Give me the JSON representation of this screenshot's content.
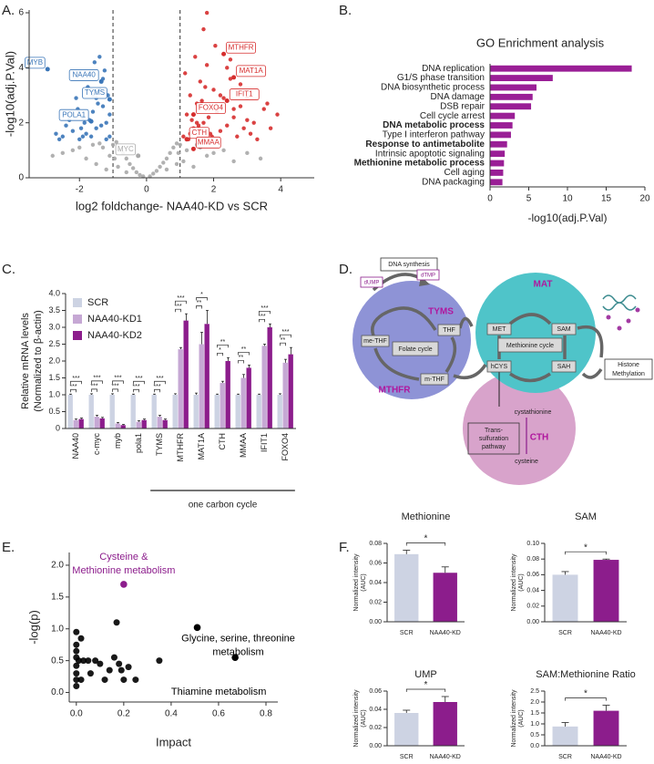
{
  "panel_labels": [
    "A.",
    "B.",
    "C.",
    "D.",
    "E.",
    "F."
  ],
  "chart_data": [
    {
      "type": "scatter",
      "xlabel": "log2 foldchange- NAA40-KD vs SCR",
      "ylabel": "-log10(adj.P.Val)",
      "xlim": [
        -3.5,
        5
      ],
      "ylim": [
        0,
        6.1
      ],
      "xticks": [
        -2,
        0,
        2,
        4
      ],
      "yticks": [
        0,
        2,
        4,
        6
      ],
      "vlines": [
        -1,
        1
      ],
      "series": [
        {
          "color": "#a9a9a9",
          "x": [
            -2.5,
            -2.2,
            -2.0,
            -1.8,
            -1.6,
            -1.5,
            -1.3,
            -1.2,
            -1.1,
            -1.0,
            -0.9,
            -0.8,
            -0.7,
            -0.6,
            -0.5,
            -0.4,
            -0.3,
            -0.2,
            -0.1,
            0.1,
            0.2,
            0.3,
            0.4,
            0.5,
            0.6,
            0.7,
            0.8,
            0.9,
            1.0,
            1.1,
            1.2,
            1.4,
            1.6,
            1.8,
            2.0,
            2.3,
            2.6,
            3.0,
            -0.85,
            -0.6,
            0.6,
            0.9,
            -1.4,
            1.5,
            -0.95,
            0.95,
            -2.8,
            3.4
          ],
          "y": [
            0.9,
            1.0,
            1.1,
            0.7,
            1.2,
            0.5,
            1.1,
            0.3,
            0.8,
            1.2,
            1.3,
            1.0,
            0.9,
            0.7,
            0.5,
            0.35,
            0.2,
            0.1,
            0.05,
            0.05,
            0.15,
            0.25,
            0.4,
            0.55,
            0.7,
            0.9,
            1.1,
            1.25,
            1.2,
            0.6,
            1.0,
            0.4,
            1.1,
            0.8,
            0.9,
            1.0,
            0.6,
            0.9,
            0.4,
            0.2,
            0.3,
            0.5,
            1.25,
            1.2,
            0.7,
            0.9,
            0.8,
            0.7
          ]
        },
        {
          "color": "#3a76b8",
          "x": [
            -1.1,
            -1.2,
            -1.3,
            -1.4,
            -1.5,
            -1.6,
            -1.7,
            -1.8,
            -1.9,
            -2.0,
            -2.1,
            -2.2,
            -2.3,
            -2.5,
            -2.7,
            -1.15,
            -1.25,
            -1.35,
            -1.45,
            -1.55,
            -1.65,
            -1.75,
            -1.85,
            -1.95,
            -2.05,
            -1.1,
            -1.2,
            -1.3,
            -1.5,
            -1.7,
            -1.9,
            -2.4,
            -2.6,
            -1.4,
            -1.6
          ],
          "y": [
            1.5,
            2.0,
            2.6,
            3.2,
            1.8,
            2.4,
            3.8,
            1.6,
            2.2,
            1.4,
            2.9,
            1.7,
            2.1,
            1.5,
            1.6,
            3.0,
            3.9,
            1.9,
            2.7,
            4.2,
            1.5,
            3.3,
            2.0,
            1.8,
            2.5,
            2.3,
            1.4,
            3.6,
            2.9,
            2.1,
            1.5,
            1.9,
            1.4,
            4.4,
            3.0
          ]
        },
        {
          "color": "#d62d2d",
          "x": [
            1.1,
            1.2,
            1.3,
            1.4,
            1.5,
            1.6,
            1.7,
            1.8,
            1.9,
            2.0,
            2.1,
            2.2,
            2.3,
            2.4,
            2.5,
            2.6,
            2.7,
            2.8,
            2.9,
            3.0,
            3.1,
            3.2,
            3.3,
            3.5,
            3.7,
            1.15,
            1.25,
            1.35,
            1.45,
            1.55,
            1.65,
            1.75,
            1.85,
            1.95,
            2.05,
            2.2,
            2.4,
            2.6,
            2.8,
            3.0,
            1.3,
            1.5,
            1.7,
            3.6,
            3.9,
            1.8,
            2.5
          ],
          "y": [
            1.5,
            2.3,
            3.0,
            1.8,
            2.7,
            3.5,
            2.0,
            4.1,
            1.6,
            3.2,
            2.4,
            1.7,
            2.9,
            1.9,
            3.6,
            2.2,
            1.5,
            2.6,
            1.8,
            2.9,
            1.6,
            2.0,
            1.4,
            2.5,
            1.8,
            3.8,
            1.4,
            2.1,
            4.4,
            1.9,
            2.8,
            3.3,
            2.2,
            1.5,
            4.8,
            3.0,
            4.0,
            2.5,
            3.4,
            2.1,
            1.6,
            2.0,
            5.4,
            2.7,
            2.3,
            6.0,
            4.3
          ]
        }
      ],
      "annotations": [
        {
          "text": "MYB",
          "x": -2.95,
          "y": 3.95,
          "color": "#3a76b8"
        },
        {
          "text": "NAA40",
          "x": -1.35,
          "y": 3.5,
          "color": "#3a76b8"
        },
        {
          "text": "TYMS",
          "x": -1.1,
          "y": 2.85,
          "color": "#3a76b8"
        },
        {
          "text": "POLA1",
          "x": -1.65,
          "y": 2.05,
          "color": "#3a76b8"
        },
        {
          "text": "MYC",
          "x": -0.25,
          "y": 0.8,
          "color": "#a9a9a9"
        },
        {
          "text": "MTHFR",
          "x": 2.3,
          "y": 4.5,
          "color": "#d62d2d"
        },
        {
          "text": "MAT1A",
          "x": 2.6,
          "y": 3.65,
          "color": "#d62d2d"
        },
        {
          "text": "IFIT1",
          "x": 2.4,
          "y": 2.8,
          "color": "#d62d2d"
        },
        {
          "text": "FOXO4",
          "x": 1.4,
          "y": 2.3,
          "color": "#d62d2d"
        },
        {
          "text": "CTH",
          "x": 1.2,
          "y": 1.4,
          "color": "#d62d2d"
        },
        {
          "text": "MMAA",
          "x": 1.4,
          "y": 1.05,
          "color": "#d62d2d"
        }
      ]
    },
    {
      "type": "barh",
      "title": "GO Enrichment analysis",
      "xlabel": "-log10(adj.P.Val)",
      "categories": [
        "DNA replication",
        "G1/S phase transition",
        "DNA biosynthetic process",
        "DNA damage",
        "DSB repair",
        "Cell cycle arrest",
        "DNA metabolic process",
        "Type I interferon pathway",
        "Response to antimetabolite",
        "Intrinsic apoptotic signaling",
        "Methionine metabolic process",
        "Cell aging",
        "DNA packaging"
      ],
      "values": [
        18.3,
        8.1,
        6.0,
        5.5,
        5.3,
        3.2,
        2.9,
        2.7,
        2.2,
        1.9,
        1.8,
        1.7,
        1.6
      ],
      "bold": [
        6,
        8,
        10
      ],
      "color": "#9a1f96",
      "xlim": [
        0,
        20
      ],
      "xticks": [
        0,
        5,
        10,
        15,
        20
      ]
    },
    {
      "type": "bar",
      "ylabel": [
        "Relative mRNA levels",
        "(Normalized to β-actin)"
      ],
      "categories": [
        "NAA40",
        "c-myc",
        "myb",
        "pola1",
        "TYMS",
        "MTHFR",
        "MAT1A",
        "CTH",
        "MMAA",
        "IFIT1",
        "FOXO4"
      ],
      "series": [
        {
          "name": "SCR",
          "color": "#cdd3e3",
          "values": [
            1,
            1,
            1,
            1,
            1,
            1,
            1,
            1,
            1,
            1,
            1
          ],
          "errors": [
            0.02,
            0.03,
            0.03,
            0.02,
            0.02,
            0.03,
            0.05,
            0.02,
            0.02,
            0.02,
            0.03
          ]
        },
        {
          "name": "NAA40-KD1",
          "color": "#c6a8d4",
          "values": [
            0.25,
            0.35,
            0.15,
            0.2,
            0.35,
            2.35,
            2.5,
            1.35,
            1.5,
            2.45,
            1.95
          ],
          "errors": [
            0.03,
            0.04,
            0.03,
            0.03,
            0.04,
            0.05,
            0.35,
            0.05,
            0.1,
            0.05,
            0.1
          ]
        },
        {
          "name": "NAA40-KD2",
          "color": "#8c1d8c",
          "values": [
            0.28,
            0.3,
            0.1,
            0.25,
            0.25,
            3.2,
            3.1,
            2.0,
            1.8,
            3.0,
            2.2
          ],
          "errors": [
            0.03,
            0.03,
            0.02,
            0.03,
            0.03,
            0.2,
            0.4,
            0.1,
            0.08,
            0.1,
            0.2
          ]
        }
      ],
      "significance": [
        [
          "***",
          "***"
        ],
        [
          "***",
          "***"
        ],
        [
          "***",
          "***"
        ],
        [
          "***",
          "***"
        ],
        [
          "***",
          "***"
        ],
        [
          "***",
          "***"
        ],
        [
          "**",
          "*"
        ],
        [
          "*",
          "**"
        ],
        [
          "**",
          "**"
        ],
        [
          "***",
          "***"
        ],
        [
          "**",
          "***"
        ]
      ],
      "group_label": {
        "text": "one carbon cycle",
        "from": 4,
        "to": 10
      },
      "ylim": [
        0,
        4
      ],
      "yticks": [
        0,
        0.5,
        {
          "value": 1,
          "label": "1.0"
        },
        1.5,
        {
          "value": 2,
          "label": "2.0"
        },
        2.5,
        {
          "value": 3,
          "label": "3.0"
        },
        3.5,
        {
          "value": 4,
          "label": "4.0"
        }
      ]
    },
    {
      "type": "scatter",
      "xlabel": "Impact",
      "ylabel": "-log(p)",
      "xlim": [
        -0.03,
        0.85
      ],
      "ylim": [
        -0.15,
        2.2
      ],
      "xticks": [
        {
          "value": 0,
          "label": "0.0"
        },
        0.2,
        0.4,
        0.6,
        0.8
      ],
      "yticks": [
        {
          "value": 0,
          "label": "0.0"
        },
        0.5,
        {
          "value": 1,
          "label": "1.0"
        },
        1.5,
        {
          "value": 2,
          "label": "2.0"
        }
      ],
      "series": [
        {
          "color": "#000000",
          "x": [
            0,
            0,
            0,
            0,
            0,
            0,
            0,
            0,
            0.01,
            0.02,
            0.02,
            0.03,
            0.05,
            0.06,
            0.08,
            0.1,
            0.12,
            0.14,
            0.16,
            0.17,
            0.18,
            0.19,
            0.2,
            0.22,
            0.25,
            0.35
          ],
          "y": [
            0.1,
            0.2,
            0.3,
            0.42,
            0.55,
            0.65,
            0.75,
            0.95,
            0.5,
            0.85,
            0.2,
            0.5,
            0.5,
            0.3,
            0.5,
            0.45,
            0.2,
            0.35,
            0.55,
            1.1,
            0.45,
            0.35,
            0.2,
            0.4,
            0.2,
            0.5
          ]
        }
      ],
      "annotations": [
        {
          "text": [
            "Cysteine &",
            "Methionine metabolism"
          ],
          "x": 0.2,
          "y": 1.7,
          "color": "#8c1d8c"
        },
        {
          "text": [
            "Glycine, serine, threonine",
            "metabolism"
          ],
          "x": 0.51,
          "y": 1.02,
          "color": "#000000"
        },
        {
          "text": [
            "Thiamine metabolism"
          ],
          "x": 0.67,
          "y": 0.55,
          "color": "#000000"
        }
      ]
    },
    {
      "type": "bar",
      "title": "Methionine",
      "ylabel": [
        "Normalized intensity",
        "(AUC)"
      ],
      "categories": [
        "SCR",
        "NAA40-KD"
      ],
      "values": [
        0.069,
        0.05
      ],
      "errors": [
        0.004,
        0.006
      ],
      "colors": [
        "#cdd3e3",
        "#8c1d8c"
      ],
      "significance": "*",
      "ylim": [
        0,
        0.08
      ],
      "yticks": [
        {
          "value": 0,
          "label": "0.00"
        },
        0.02,
        0.04,
        0.06,
        0.08
      ]
    },
    {
      "type": "bar",
      "title": "SAM",
      "ylabel": [
        "Normalized intensity",
        "(AUC)"
      ],
      "categories": [
        "SCR",
        "NAA40-KD"
      ],
      "values": [
        0.06,
        0.079
      ],
      "errors": [
        0.004,
        0.001
      ],
      "colors": [
        "#cdd3e3",
        "#8c1d8c"
      ],
      "significance": "*",
      "ylim": [
        0,
        0.1
      ],
      "yticks": [
        {
          "value": 0,
          "label": "0.00"
        },
        0.02,
        0.04,
        0.06,
        0.08,
        {
          "value": 0.1,
          "label": "0.10"
        }
      ]
    },
    {
      "type": "bar",
      "title": "UMP",
      "ylabel": [
        "Normalized intensity",
        "(AUC)"
      ],
      "categories": [
        "SCR",
        "NAA40-KD"
      ],
      "values": [
        0.036,
        0.048
      ],
      "errors": [
        0.003,
        0.006
      ],
      "colors": [
        "#cdd3e3",
        "#8c1d8c"
      ],
      "significance": "*",
      "ylim": [
        0,
        0.06
      ],
      "yticks": [
        {
          "value": 0,
          "label": "0.00"
        },
        0.02,
        0.04,
        0.06
      ]
    },
    {
      "type": "bar",
      "title": "SAM:Methionine Ratio",
      "ylabel": [
        "Normalized intensity",
        "(AUC)"
      ],
      "categories": [
        "SCR",
        "NAA40-KD"
      ],
      "values": [
        0.88,
        1.6
      ],
      "errors": [
        0.18,
        0.25
      ],
      "colors": [
        "#cdd3e3",
        "#8c1d8c"
      ],
      "significance": "*",
      "ylim": [
        0,
        2.5
      ],
      "yticks": [
        {
          "value": 0,
          "label": "0.0"
        },
        0.5,
        {
          "value": 1,
          "label": "1.0"
        },
        1.5,
        {
          "value": 2,
          "label": "2.0"
        },
        2.5
      ]
    }
  ],
  "diagram": {
    "dna_synthesis": "DNA synthesis",
    "dump": "dUMP",
    "dtmp": "dTMP",
    "tyms": "TYMS",
    "thf": "THF",
    "me_thf": "me-THF",
    "folate_cycle": "Folate cycle",
    "mthfr": "MTHFR",
    "m_thf": "m-THF",
    "mat": "MAT",
    "met": "MET",
    "sam": "SAM",
    "methionine_cycle": "Methionine cycle",
    "hcys": "hCYS",
    "sah": "SAH",
    "histone_methylation": [
      "Histone",
      "Methylation"
    ],
    "cystathionine": "cystathionine",
    "transsulfuration": [
      "Trans-",
      "sulfuration",
      "pathway"
    ],
    "cth": "CTH",
    "cysteine": "cysteine"
  }
}
